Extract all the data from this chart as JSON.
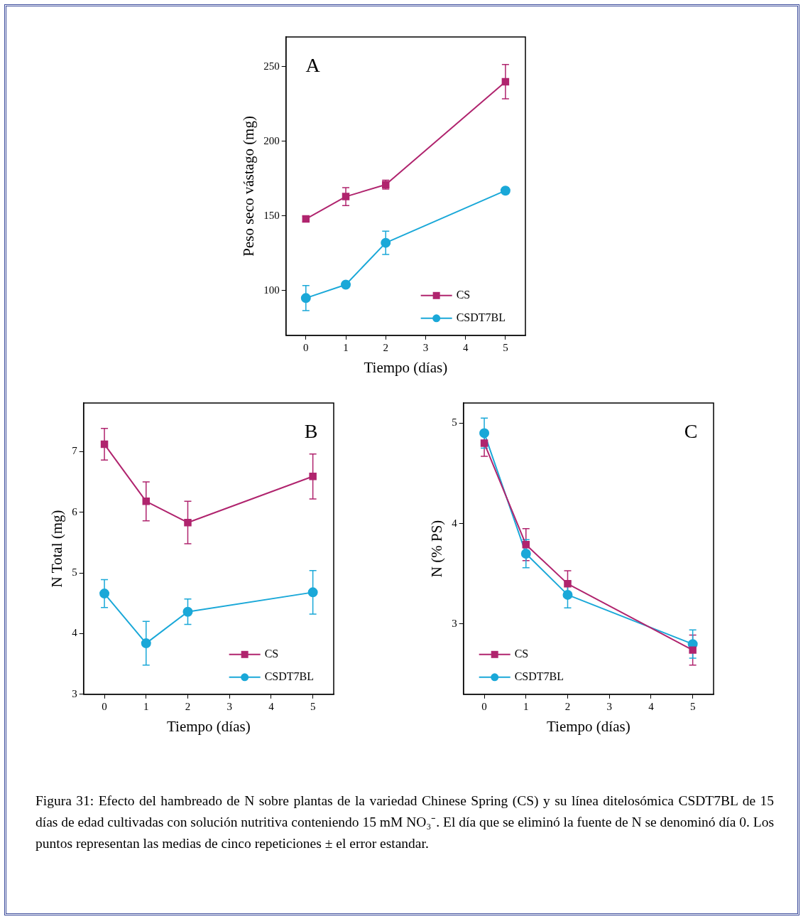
{
  "chart_data": [
    {
      "type": "line",
      "title": "A",
      "xlabel": "Tiempo (días)",
      "ylabel": "Peso seco vástago (mg)",
      "x": [
        0,
        1,
        2,
        5
      ],
      "xlim": [
        -0.5,
        5.5
      ],
      "xticks": [
        0,
        1,
        2,
        3,
        4,
        5
      ],
      "ylim": [
        70,
        270
      ],
      "yticks": [
        100,
        150,
        200,
        250
      ],
      "grid": false,
      "legend": "bottom right",
      "series": [
        {
          "name": "CS",
          "color": "#b0246e",
          "marker": "square",
          "values": [
            148,
            163,
            171,
            240
          ],
          "errors": [
            2,
            6,
            3,
            11.5
          ]
        },
        {
          "name": "CSDT7BL",
          "color": "#1aa8d8",
          "marker": "circle",
          "values": [
            95,
            104,
            132,
            167
          ],
          "errors": [
            8.4,
            1,
            7.8,
            2
          ]
        }
      ],
      "annotations": [
        "Figura 31: Efecto del hambreado de N sobre plantas de la variedad Chinese Spring (CS) y su línea ditelosómica CSDT7BL de 15 días de edad cultivadas con solución nutritiva conteniendo 15 mM NO₃⁻. El día que se eliminó la fuente de N se denominó día 0. Los puntos representan las medias de cinco repeticiones ± el error estandar."
      ]
    },
    {
      "type": "line",
      "title": "B",
      "xlabel": "Tiempo (días)",
      "ylabel": "N Total (mg)",
      "x": [
        0,
        1,
        2,
        5
      ],
      "xlim": [
        -0.5,
        5.5
      ],
      "xticks": [
        0,
        1,
        2,
        3,
        4,
        5
      ],
      "ylim": [
        3,
        7.8
      ],
      "yticks": [
        3,
        4,
        5,
        6,
        7
      ],
      "grid": false,
      "legend": "bottom right",
      "series": [
        {
          "name": "CS",
          "color": "#b0246e",
          "marker": "square",
          "values": [
            7.12,
            6.18,
            5.83,
            6.59
          ],
          "errors": [
            0.26,
            0.32,
            0.35,
            0.37
          ]
        },
        {
          "name": "CSDT7BL",
          "color": "#1aa8d8",
          "marker": "circle",
          "values": [
            4.66,
            3.84,
            4.36,
            4.68
          ],
          "errors": [
            0.23,
            0.36,
            0.21,
            0.36
          ]
        }
      ]
    },
    {
      "type": "line",
      "title": "C",
      "xlabel": "Tiempo (días)",
      "ylabel": "N (% PS)",
      "x": [
        0,
        1,
        2,
        5
      ],
      "xlim": [
        -0.5,
        5.5
      ],
      "xticks": [
        0,
        1,
        2,
        3,
        4,
        5
      ],
      "ylim": [
        2.3,
        5.2
      ],
      "yticks": [
        3,
        4,
        5
      ],
      "grid": false,
      "legend": "bottom left",
      "series": [
        {
          "name": "CS",
          "color": "#b0246e",
          "marker": "square",
          "values": [
            4.8,
            3.79,
            3.4,
            2.74
          ],
          "errors": [
            0.13,
            0.16,
            0.13,
            0.15
          ]
        },
        {
          "name": "CSDT7BL",
          "color": "#1aa8d8",
          "marker": "circle",
          "values": [
            4.9,
            3.7,
            3.29,
            2.8
          ],
          "errors": [
            0.15,
            0.14,
            0.13,
            0.14
          ]
        }
      ]
    }
  ]
}
